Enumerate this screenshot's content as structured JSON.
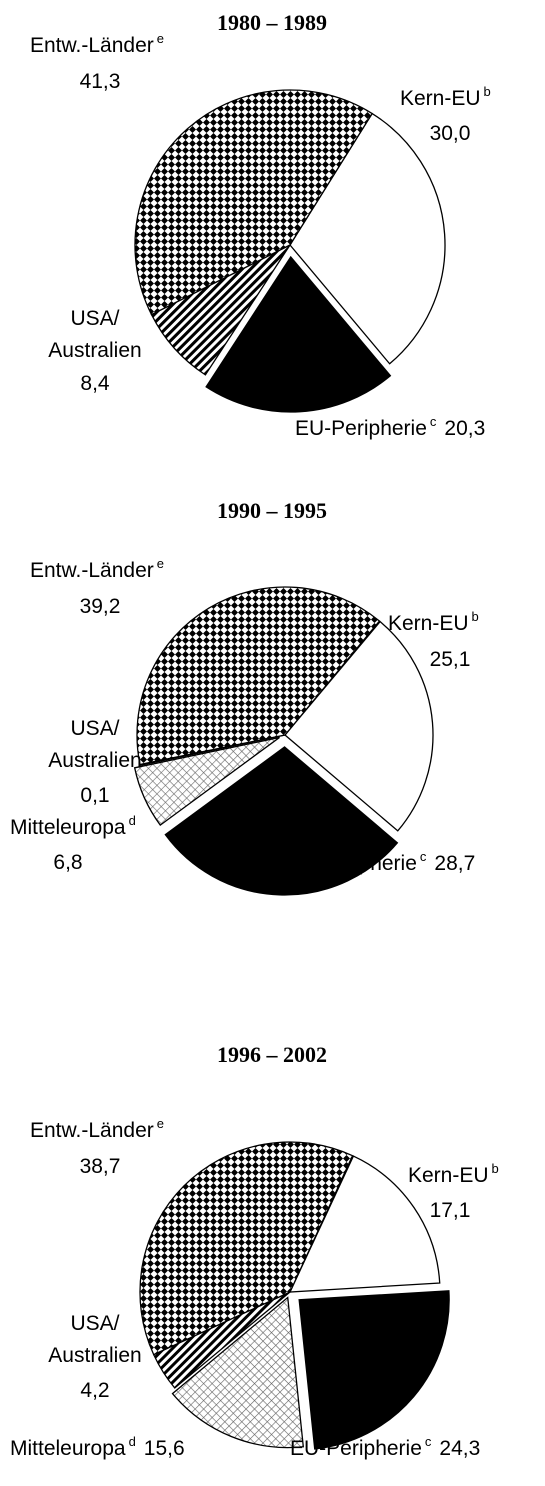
{
  "chart_data": [
    {
      "type": "pie",
      "title": "1980 – 1989",
      "categories": [
        "Kern-EU",
        "EU-Peripherie",
        "USA/Australien",
        "Entw.-Länder"
      ],
      "notes": [
        "b",
        "c",
        null,
        "e"
      ],
      "values": [
        30.0,
        20.3,
        8.4,
        41.3
      ],
      "value_labels": [
        "30,0",
        "20,3",
        "8,4",
        "41,3"
      ]
    },
    {
      "type": "pie",
      "title": "1990 – 1995",
      "categories": [
        "Kern-EU",
        "EU-Peripherie",
        "Mitteleuropa",
        "USA/Australien",
        "Entw.-Länder"
      ],
      "notes": [
        "b",
        "c",
        "d",
        null,
        "e"
      ],
      "values": [
        25.1,
        28.7,
        6.8,
        0.1,
        39.2
      ],
      "value_labels": [
        "25,1",
        "28,7",
        "6,8",
        "0,1",
        "39,2"
      ]
    },
    {
      "type": "pie",
      "title": "1996 – 2002",
      "categories": [
        "Kern-EU",
        "EU-Peripherie",
        "Mitteleuropa",
        "USA/Australien",
        "Entw.-Länder"
      ],
      "notes": [
        "b",
        "c",
        "d",
        null,
        "e"
      ],
      "values": [
        17.1,
        24.3,
        15.6,
        4.2,
        38.7
      ],
      "value_labels": [
        "17,1",
        "24,3",
        "15,6",
        "4,2",
        "38,7"
      ]
    }
  ]
}
